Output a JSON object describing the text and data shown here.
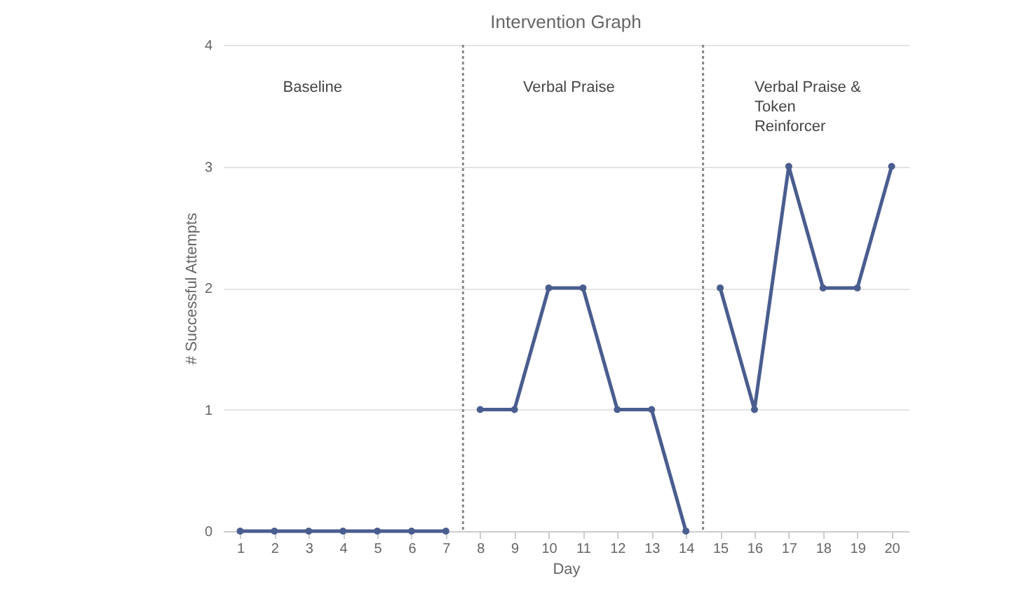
{
  "chart_data": {
    "type": "line",
    "title": "Intervention Graph",
    "xlabel": "Day",
    "ylabel": "# Successful Attempts",
    "x": [
      1,
      2,
      3,
      4,
      5,
      6,
      7,
      8,
      9,
      10,
      11,
      12,
      13,
      14,
      15,
      16,
      17,
      18,
      19,
      20
    ],
    "series": [
      {
        "color": "#4a5d8f",
        "values": [
          0,
          0,
          0,
          0,
          0,
          0,
          0,
          null,
          null,
          null,
          null,
          null,
          null,
          null,
          null,
          null,
          null,
          null,
          null,
          null
        ]
      },
      {
        "color": "#4a5d8f",
        "values": [
          null,
          null,
          null,
          null,
          null,
          null,
          null,
          1,
          1,
          2,
          2,
          1,
          1,
          0,
          null,
          null,
          null,
          null,
          null,
          null
        ]
      },
      {
        "color": "#4a5d8f",
        "values": [
          null,
          null,
          null,
          null,
          null,
          null,
          null,
          null,
          null,
          null,
          null,
          null,
          null,
          null,
          2,
          1,
          3,
          2,
          2,
          3
        ]
      }
    ],
    "xlim": [
      0.5,
      20.5
    ],
    "xticks": [
      1,
      2,
      3,
      4,
      5,
      6,
      7,
      8,
      9,
      10,
      11,
      12,
      13,
      14,
      15,
      16,
      17,
      18,
      19,
      20
    ],
    "ylim": [
      0,
      4
    ],
    "yticks": [
      0,
      1,
      2,
      3,
      4
    ],
    "ref_lines": [
      {
        "axis": "x",
        "value": 7.5,
        "line_style": "dotted",
        "color": "#888888"
      },
      {
        "axis": "x",
        "value": 14.5,
        "line_style": "dotted",
        "color": "#888888"
      }
    ],
    "annotations": [
      "Baseline",
      "Verbal Praise",
      "Verbal Praise &\nToken\nReinforcer"
    ],
    "grid": "y",
    "marker": "circle",
    "line_style": "solid"
  }
}
